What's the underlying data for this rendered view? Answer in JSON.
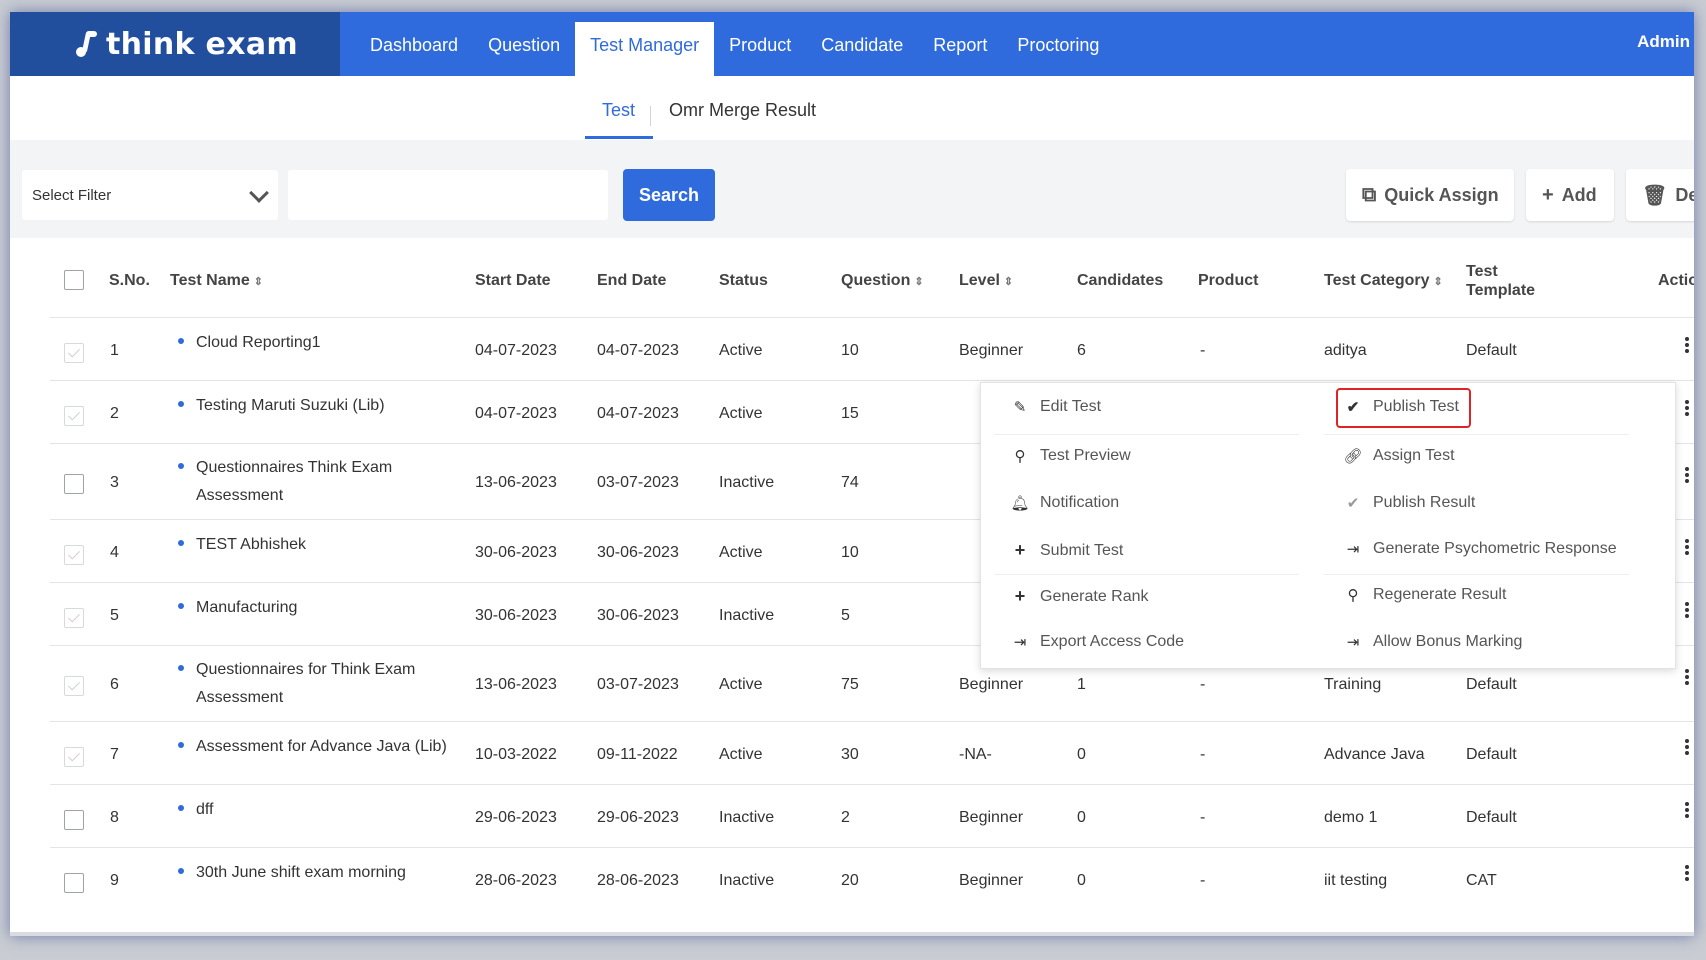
{
  "brand": {
    "name": "think exam"
  },
  "nav": {
    "items": [
      "Dashboard",
      "Question",
      "Test Manager",
      "Product",
      "Candidate",
      "Report",
      "Proctoring"
    ],
    "active": "Test Manager",
    "user": "Admin"
  },
  "subtabs": {
    "items": [
      "Test",
      "Omr Merge Result"
    ],
    "active": "Test"
  },
  "filter": {
    "select_label": "Select Filter",
    "search_value": "",
    "search_label": "Search",
    "quick_assign_label": "Quick Assign",
    "add_label": "Add",
    "delete_label": "Dele"
  },
  "table": {
    "headers": {
      "sno": "S.No.",
      "test_name": "Test Name",
      "start_date": "Start Date",
      "end_date": "End Date",
      "status": "Status",
      "question": "Question",
      "level": "Level",
      "candidates": "Candidates",
      "product": "Product",
      "test_category": "Test Category",
      "test_template_1": "Test",
      "test_template_2": "Template",
      "action": "Actior"
    },
    "rows": [
      {
        "sno": "1",
        "name1": "Cloud Reporting1",
        "name2": "",
        "start": "04-07-2023",
        "end": "04-07-2023",
        "status": "Active",
        "question": "10",
        "level": "Beginner",
        "candidates": "6",
        "product": "-",
        "category": "aditya",
        "template": "Default"
      },
      {
        "sno": "2",
        "name1": "Testing Maruti Suzuki (Lib)",
        "name2": "",
        "start": "04-07-2023",
        "end": "04-07-2023",
        "status": "Active",
        "question": "15",
        "level": "",
        "candidates": "",
        "product": "",
        "category": "",
        "template": ""
      },
      {
        "sno": "3",
        "name1": "Questionnaires Think Exam",
        "name2": "Assessment",
        "start": "13-06-2023",
        "end": "03-07-2023",
        "status": "Inactive",
        "question": "74",
        "level": "",
        "candidates": "",
        "product": "",
        "category": "",
        "template": ""
      },
      {
        "sno": "4",
        "name1": "TEST Abhishek",
        "name2": "",
        "start": "30-06-2023",
        "end": "30-06-2023",
        "status": "Active",
        "question": "10",
        "level": "",
        "candidates": "",
        "product": "",
        "category": "",
        "template": ""
      },
      {
        "sno": "5",
        "name1": "Manufacturing",
        "name2": "",
        "start": "30-06-2023",
        "end": "30-06-2023",
        "status": "Inactive",
        "question": "5",
        "level": "",
        "candidates": "",
        "product": "",
        "category": "",
        "template": ""
      },
      {
        "sno": "6",
        "name1": "Questionnaires for Think Exam",
        "name2": "Assessment",
        "start": "13-06-2023",
        "end": "03-07-2023",
        "status": "Active",
        "question": "75",
        "level": "Beginner",
        "candidates": "1",
        "product": "-",
        "category": "Training",
        "template": "Default"
      },
      {
        "sno": "7",
        "name1": "Assessment for Advance Java (Lib)",
        "name2": "",
        "start": "10-03-2022",
        "end": "09-11-2022",
        "status": "Active",
        "question": "30",
        "level": "-NA-",
        "candidates": "0",
        "product": "-",
        "category": "Advance Java",
        "template": "Default"
      },
      {
        "sno": "8",
        "name1": "dff",
        "name2": "",
        "start": "29-06-2023",
        "end": "29-06-2023",
        "status": "Inactive",
        "question": "2",
        "level": "Beginner",
        "candidates": "0",
        "product": "-",
        "category": "demo 1",
        "template": "Default"
      },
      {
        "sno": "9",
        "name1": "30th June shift exam morning",
        "name2": "",
        "start": "28-06-2023",
        "end": "28-06-2023",
        "status": "Inactive",
        "question": "20",
        "level": "Beginner",
        "candidates": "0",
        "product": "-",
        "category": "iit testing",
        "template": "CAT"
      }
    ]
  },
  "action_menu": {
    "left": [
      "Edit Test",
      "Test Preview",
      "Notification",
      "Submit Test",
      "Generate Rank",
      "Export Access Code"
    ],
    "right": [
      "Publish Test",
      "Assign Test",
      "Publish Result",
      "Generate Psychometric Response",
      "Regenerate Result",
      "Allow Bonus Marking"
    ],
    "left_icons": [
      "pencil-icon",
      "magnifier-icon",
      "bell-icon",
      "plus-icon",
      "plus-icon",
      "export-icon"
    ],
    "right_icons": [
      "check-icon",
      "link-icon",
      "check-icon",
      "export-icon",
      "magnifier-icon",
      "export-icon"
    ],
    "highlighted": "Publish Test",
    "highlight_color": "#e02424"
  },
  "colors": {
    "primary": "#2f6bdc",
    "brand_bg": "#214f9e"
  }
}
